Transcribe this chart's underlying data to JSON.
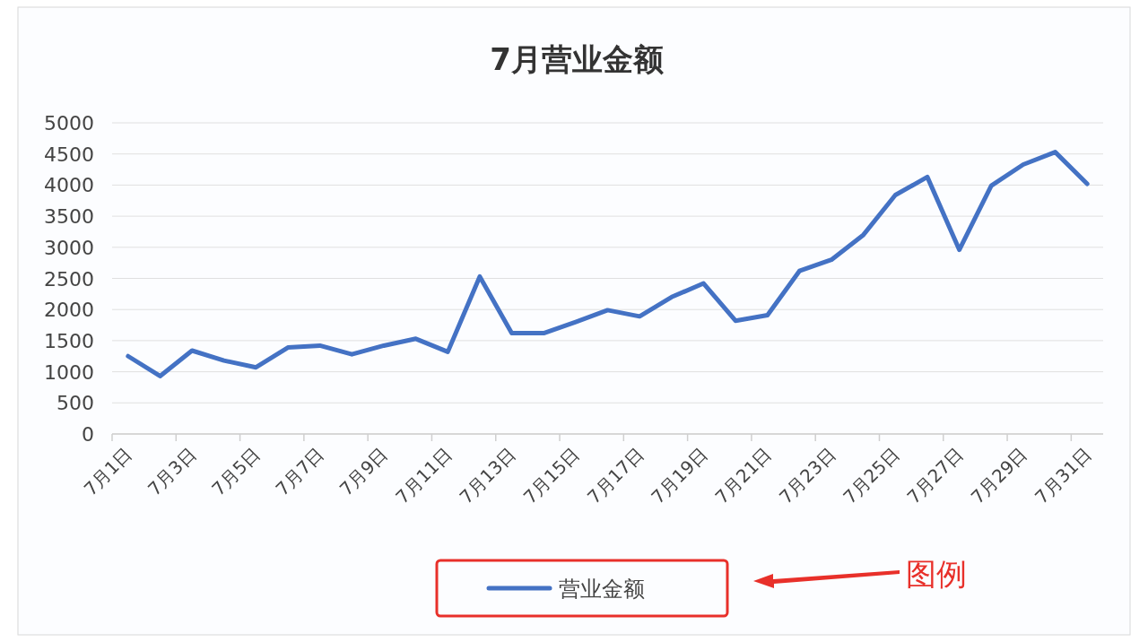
{
  "chart_data": {
    "type": "line",
    "title": "7月营业金额",
    "categories": [
      "7月1日",
      null,
      "7月3日",
      null,
      "7月5日",
      null,
      "7月7日",
      null,
      "7月9日",
      null,
      "7月11日",
      null,
      "7月13日",
      null,
      "7月15日",
      null,
      "7月17日",
      null,
      "7月19日",
      null,
      "7月21日",
      null,
      "7月23日",
      null,
      "7月25日",
      null,
      "7月27日",
      null,
      "7月29日",
      null,
      "7月31日"
    ],
    "series": [
      {
        "name": "营业金额",
        "color": "#4472c4",
        "values": [
          1250,
          930,
          1340,
          1180,
          1070,
          1390,
          1420,
          1280,
          1420,
          1530,
          1320,
          2530,
          1620,
          1620,
          1800,
          1990,
          1890,
          2200,
          2420,
          1820,
          1910,
          2620,
          2800,
          3200,
          3840,
          4130,
          2960,
          3990,
          4330,
          4530,
          4020
        ]
      }
    ],
    "ylim": [
      0,
      5000
    ],
    "yticks": [
      0,
      500,
      1000,
      1500,
      2000,
      2500,
      3000,
      3500,
      4000,
      4500,
      5000
    ],
    "grid": "y",
    "legend": "bottom",
    "marker": "none",
    "line_style": "solid",
    "annotations": [
      "图例"
    ]
  }
}
